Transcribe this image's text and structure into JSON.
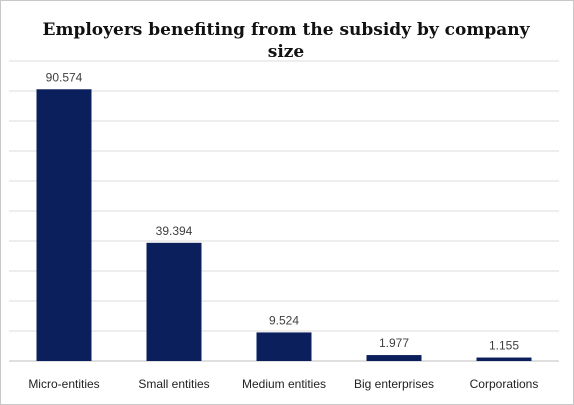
{
  "chart_data": {
    "type": "bar",
    "title": "Employers benefiting from the subsidy by company size",
    "xlabel": "",
    "ylabel": "",
    "categories": [
      "Micro-entities",
      "Small entities",
      "Medium entities",
      "Big enterprises",
      "Corporations"
    ],
    "values": [
      90.574,
      39.394,
      9.524,
      1.977,
      1.155
    ],
    "data_labels": [
      "90.574",
      "39.394",
      "9.524",
      "1.977",
      "1.155"
    ],
    "ylim": [
      0,
      100
    ],
    "grid": true,
    "legend": "none",
    "bar_color": "#0b1f5c"
  }
}
